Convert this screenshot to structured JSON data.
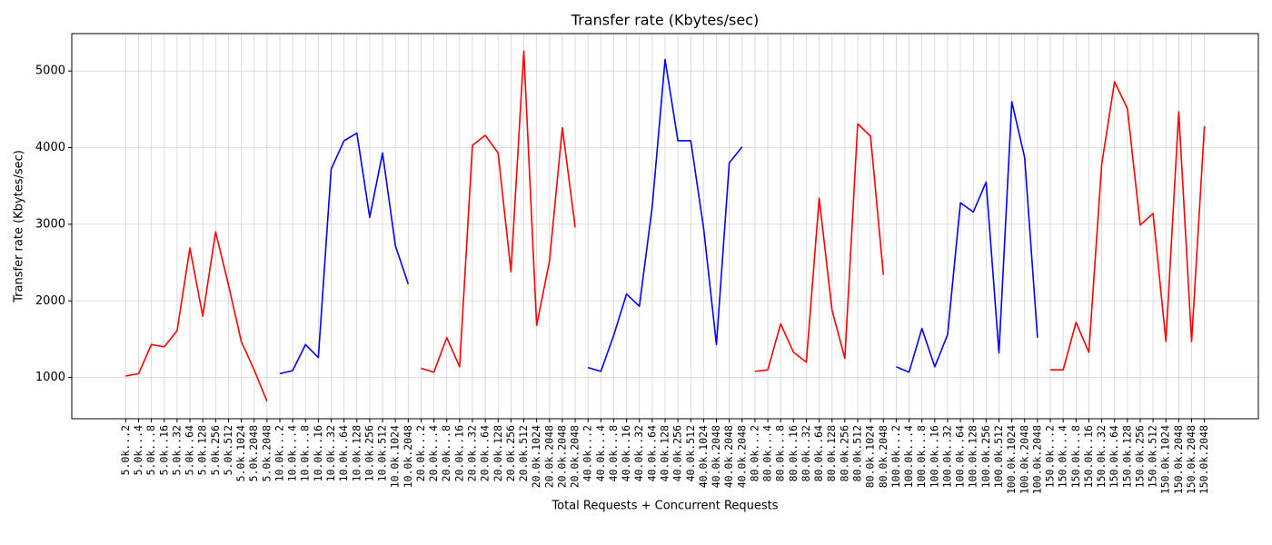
{
  "chart_data": {
    "type": "line",
    "title": "Transfer rate (Kbytes/sec)",
    "x_label": "Total Requests + Concurrent Requests",
    "y_label": "Transfer rate (Kbytes/sec)",
    "categories": [
      "5.0k...2",
      "5.0k...4",
      "5.0k...8",
      "5.0k..16",
      "5.0k..32",
      "5.0k..64",
      "5.0k.128",
      "5.0k.256",
      "5.0k.512",
      "5.0k.1024",
      "5.0k.2048",
      "5.0k.2048",
      "10.0k...2",
      "10.0k...4",
      "10.0k...8",
      "10.0k..16",
      "10.0k..32",
      "10.0k..64",
      "10.0k.128",
      "10.0k.256",
      "10.0k.512",
      "10.0k.1024",
      "10.0k.2048",
      "20.0k...2",
      "20.0k...4",
      "20.0k...8",
      "20.0k..16",
      "20.0k..32",
      "20.0k..64",
      "20.0k.128",
      "20.0k.256",
      "20.0k.512",
      "20.0k.1024",
      "20.0k.2048",
      "20.0k.2048",
      "20.0k.2048",
      "40.0k...2",
      "40.0k...4",
      "40.0k...8",
      "40.0k..16",
      "40.0k..32",
      "40.0k..64",
      "40.0k.128",
      "40.0k.256",
      "40.0k.512",
      "40.0k.1024",
      "40.0k.2048",
      "40.0k.2048",
      "40.0k.2048",
      "80.0k...2",
      "80.0k...4",
      "80.0k...8",
      "80.0k..16",
      "80.0k..32",
      "80.0k..64",
      "80.0k.128",
      "80.0k.256",
      "80.0k.512",
      "80.0k.1024",
      "80.0k.2048",
      "100.0k...2",
      "100.0k...4",
      "100.0k...8",
      "100.0k..16",
      "100.0k..32",
      "100.0k..64",
      "100.0k.128",
      "100.0k.256",
      "100.0k.512",
      "100.0k.1024",
      "100.0k.2048",
      "100.0k.2048",
      "150.0k...2",
      "150.0k...4",
      "150.0k...8",
      "150.0k..16",
      "150.0k..32",
      "150.0k..64",
      "150.0k.128",
      "150.0k.256",
      "150.0k.512",
      "150.0k.1024",
      "150.0k.2048",
      "150.0k.2048",
      "150.0k.2048"
    ],
    "series": [
      {
        "color": "#ff0000",
        "values": [
          1020,
          1050,
          1430,
          1400,
          1610,
          2690,
          1800,
          2900,
          2210,
          1470,
          1100,
          690,
          null,
          null,
          null,
          null,
          null,
          null,
          null,
          null,
          null,
          null,
          null,
          null,
          null,
          null,
          null,
          null,
          null,
          null,
          null,
          null,
          null,
          null,
          null,
          null,
          null,
          null,
          null,
          null,
          null,
          null,
          null,
          null,
          null,
          null,
          null,
          null,
          null,
          null,
          null,
          null,
          null,
          null,
          null,
          null,
          null,
          null,
          null,
          null,
          null,
          null,
          null,
          null,
          null,
          null,
          null,
          null,
          null,
          null,
          null,
          null,
          null,
          null,
          null,
          null,
          null,
          null,
          null,
          null,
          null,
          null,
          null,
          null,
          null
        ]
      },
      {
        "color": "#0000ff",
        "values": [
          null,
          null,
          null,
          null,
          null,
          null,
          null,
          null,
          null,
          null,
          null,
          null,
          1050,
          1090,
          1430,
          1260,
          3720,
          4090,
          4190,
          3090,
          3930,
          2720,
          2220,
          null,
          null,
          null,
          null,
          null,
          null,
          null,
          null,
          null,
          null,
          null,
          null,
          null,
          null,
          null,
          null,
          null,
          null,
          null,
          null,
          null,
          null,
          null,
          null,
          null,
          null,
          null,
          null,
          null,
          null,
          null,
          null,
          null,
          null,
          null,
          null,
          null,
          null,
          null,
          null,
          null,
          null,
          null,
          null,
          null,
          null,
          null,
          null,
          null,
          null,
          null,
          null,
          null,
          null,
          null,
          null,
          null,
          null,
          null,
          null,
          null,
          null
        ]
      },
      {
        "color": "#ff0000",
        "values": [
          null,
          null,
          null,
          null,
          null,
          null,
          null,
          null,
          null,
          null,
          null,
          null,
          null,
          null,
          null,
          null,
          null,
          null,
          null,
          null,
          null,
          null,
          null,
          1120,
          1070,
          1520,
          1140,
          4030,
          4160,
          3930,
          2380,
          5260,
          1680,
          2520,
          4260,
          2960,
          null,
          null,
          null,
          null,
          null,
          null,
          null,
          null,
          null,
          null,
          null,
          null,
          null,
          null,
          null,
          null,
          null,
          null,
          null,
          null,
          null,
          null,
          null,
          null,
          null,
          null,
          null,
          null,
          null,
          null,
          null,
          null,
          null,
          null,
          null,
          null,
          null,
          null,
          null,
          null,
          null,
          null,
          null,
          null,
          null,
          null,
          null,
          null,
          null
        ]
      },
      {
        "color": "#0000ff",
        "values": [
          null,
          null,
          null,
          null,
          null,
          null,
          null,
          null,
          null,
          null,
          null,
          null,
          null,
          null,
          null,
          null,
          null,
          null,
          null,
          null,
          null,
          null,
          null,
          null,
          null,
          null,
          null,
          null,
          null,
          null,
          null,
          null,
          null,
          null,
          null,
          null,
          1130,
          1080,
          1550,
          2090,
          1930,
          3230,
          5150,
          4090,
          4090,
          2950,
          1430,
          3800,
          4010,
          null,
          null,
          null,
          null,
          null,
          null,
          null,
          null,
          null,
          null,
          null,
          null,
          null,
          null,
          null,
          null,
          null,
          null,
          null,
          null,
          null,
          null,
          null,
          null,
          null,
          null,
          null,
          null,
          null,
          null,
          null,
          null,
          null,
          null,
          null,
          null
        ]
      },
      {
        "color": "#ff0000",
        "values": [
          null,
          null,
          null,
          null,
          null,
          null,
          null,
          null,
          null,
          null,
          null,
          null,
          null,
          null,
          null,
          null,
          null,
          null,
          null,
          null,
          null,
          null,
          null,
          null,
          null,
          null,
          null,
          null,
          null,
          null,
          null,
          null,
          null,
          null,
          null,
          null,
          null,
          null,
          null,
          null,
          null,
          null,
          null,
          null,
          null,
          null,
          null,
          null,
          null,
          1080,
          1100,
          1700,
          1330,
          1200,
          3340,
          1880,
          1250,
          4310,
          4150,
          2340,
          null,
          null,
          null,
          null,
          null,
          null,
          null,
          null,
          null,
          null,
          null,
          null,
          null,
          null,
          null,
          null,
          null,
          null,
          null,
          null,
          null,
          null,
          null,
          null,
          null
        ]
      },
      {
        "color": "#0000ff",
        "values": [
          null,
          null,
          null,
          null,
          null,
          null,
          null,
          null,
          null,
          null,
          null,
          null,
          null,
          null,
          null,
          null,
          null,
          null,
          null,
          null,
          null,
          null,
          null,
          null,
          null,
          null,
          null,
          null,
          null,
          null,
          null,
          null,
          null,
          null,
          null,
          null,
          null,
          null,
          null,
          null,
          null,
          null,
          null,
          null,
          null,
          null,
          null,
          null,
          null,
          null,
          null,
          null,
          null,
          null,
          null,
          null,
          null,
          null,
          null,
          null,
          1140,
          1070,
          1640,
          1140,
          1560,
          3280,
          3160,
          3550,
          1320,
          4600,
          3870,
          1520,
          null,
          null,
          null,
          null,
          null,
          null,
          null,
          null,
          null,
          null,
          null,
          null,
          null
        ]
      },
      {
        "color": "#ff0000",
        "values": [
          null,
          null,
          null,
          null,
          null,
          null,
          null,
          null,
          null,
          null,
          null,
          null,
          null,
          null,
          null,
          null,
          null,
          null,
          null,
          null,
          null,
          null,
          null,
          null,
          null,
          null,
          null,
          null,
          null,
          null,
          null,
          null,
          null,
          null,
          null,
          null,
          null,
          null,
          null,
          null,
          null,
          null,
          null,
          null,
          null,
          null,
          null,
          null,
          null,
          null,
          null,
          null,
          null,
          null,
          null,
          null,
          null,
          null,
          null,
          null,
          null,
          null,
          null,
          null,
          null,
          null,
          null,
          null,
          null,
          null,
          null,
          null,
          1100,
          1100,
          1720,
          1330,
          3780,
          4860,
          4510,
          2990,
          3140,
          1470,
          4470,
          1470,
          4280
        ]
      }
    ],
    "ylim": [
      462,
      5488
    ],
    "yticks": [
      1000,
      2000,
      3000,
      4000,
      5000
    ],
    "grid": true
  }
}
